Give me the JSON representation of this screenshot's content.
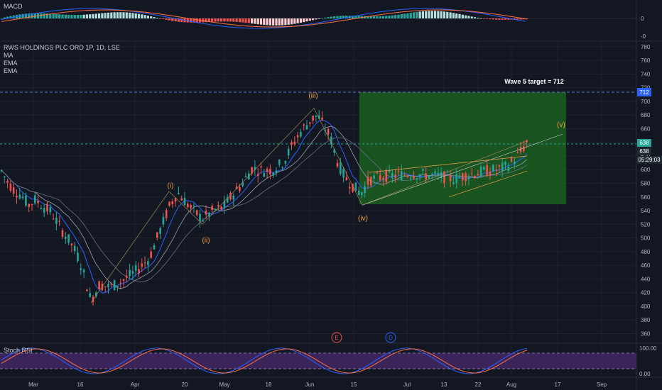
{
  "symbol_title": "RWS HOLDINGS PLC ORD 1P, 1D, LSE",
  "indicators": {
    "macd_label": "MACD",
    "ma_label": "MA",
    "ema1_label": "EMA",
    "ema2_label": "EMA",
    "stoch_label": "Stoch RSI"
  },
  "colors": {
    "background": "#131722",
    "up": "#26a69a",
    "down": "#ef5350",
    "target_box": "#1a5e20",
    "ema_blue": "#2962ff",
    "stoch_band": "#7e57c2",
    "wave_label": "#f0a04b"
  },
  "annotations": {
    "wave_target": "Wave 5 target = 712",
    "wave_i": "(i)",
    "wave_ii": "(ii)",
    "wave_iii": "(iii)",
    "wave_iv": "(iv)",
    "wave_v": "(v)",
    "earnings_marker": "E",
    "dividend_marker": "D"
  },
  "price_tags": {
    "target": "712",
    "last_1": "638",
    "last_2": "638",
    "countdown": "05:29:03"
  },
  "macd_axis": [
    "0",
    "-0"
  ],
  "stoch_axis": [
    "100.00",
    "0.00"
  ],
  "chart_data": {
    "type": "candlestick",
    "title": "RWS HOLDINGS PLC ORD 1P, 1D, LSE",
    "y_ticks": [
      360,
      380,
      400,
      420,
      440,
      460,
      480,
      500,
      520,
      540,
      560,
      580,
      600,
      620,
      640,
      660,
      680,
      700,
      720,
      740,
      760,
      780
    ],
    "ylim": [
      348,
      784
    ],
    "x_ticks": [
      "Mar",
      "16",
      "Apr",
      "20",
      "May",
      "18",
      "Jun",
      "15",
      "Jul",
      "13",
      "22",
      "Aug",
      "17",
      "Sep"
    ],
    "target_level": 712,
    "last_price": 638,
    "price_path": [
      [
        0,
        602
      ],
      [
        10,
        583
      ],
      [
        20,
        570
      ],
      [
        30,
        563
      ],
      [
        40,
        548
      ],
      [
        50,
        556
      ],
      [
        60,
        547
      ],
      [
        72,
        538
      ],
      [
        85,
        515
      ],
      [
        100,
        492
      ],
      [
        112,
        468
      ],
      [
        120,
        440
      ],
      [
        128,
        408
      ],
      [
        140,
        432
      ],
      [
        155,
        428
      ],
      [
        170,
        436
      ],
      [
        190,
        450
      ],
      [
        210,
        470
      ],
      [
        225,
        510
      ],
      [
        238,
        545
      ],
      [
        250,
        567
      ],
      [
        262,
        552
      ],
      [
        272,
        540
      ],
      [
        285,
        528
      ],
      [
        300,
        540
      ],
      [
        315,
        545
      ],
      [
        325,
        560
      ],
      [
        340,
        578
      ],
      [
        355,
        602
      ],
      [
        370,
        598
      ],
      [
        385,
        600
      ],
      [
        400,
        612
      ],
      [
        415,
        642
      ],
      [
        425,
        658
      ],
      [
        437,
        672
      ],
      [
        447,
        680
      ],
      [
        455,
        665
      ],
      [
        465,
        648
      ],
      [
        475,
        612
      ],
      [
        485,
        590
      ],
      [
        495,
        578
      ],
      [
        508,
        565
      ],
      [
        520,
        585
      ],
      [
        540,
        590
      ],
      [
        560,
        592
      ],
      [
        580,
        594
      ],
      [
        600,
        592
      ],
      [
        620,
        590
      ],
      [
        640,
        586
      ],
      [
        655,
        592
      ],
      [
        670,
        595
      ],
      [
        685,
        598
      ],
      [
        700,
        600
      ],
      [
        712,
        604
      ],
      [
        722,
        612
      ],
      [
        732,
        625
      ],
      [
        742,
        640
      ]
    ],
    "series": [
      {
        "name": "MA"
      },
      {
        "name": "EMA"
      },
      {
        "name": "EMA"
      }
    ],
    "wave_points": [
      {
        "label": "(i)",
        "price": 566
      },
      {
        "label": "(ii)",
        "price": 522
      },
      {
        "label": "(iii)",
        "price": 688
      },
      {
        "label": "(iv)",
        "price": 546
      },
      {
        "label": "(v)",
        "price": 654
      }
    ],
    "target_box_range": [
      549,
      712
    ]
  }
}
